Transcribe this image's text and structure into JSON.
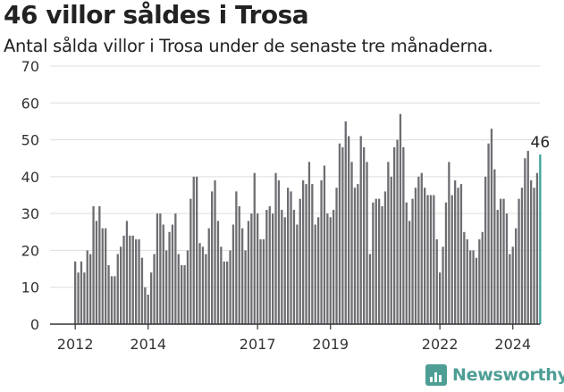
{
  "header": {
    "title": "46 villor såldes i Trosa",
    "subtitle": "Antal sålda villor i Trosa under de senaste tre månaderna."
  },
  "brand": {
    "name": "Newsworthy"
  },
  "colors": {
    "bar": "#6e6d72",
    "highlight": "#3aa39b",
    "grid": "#dddddd",
    "axis": "#333333"
  },
  "chart_data": {
    "type": "bar",
    "title": "46 villor såldes i Trosa",
    "xlabel": "",
    "ylabel": "",
    "ylim": [
      0,
      70
    ],
    "yticks": [
      0,
      10,
      20,
      30,
      40,
      50,
      60,
      70
    ],
    "xticks": [
      {
        "label": "2012",
        "index": 0
      },
      {
        "label": "2014",
        "index": 24
      },
      {
        "label": "2017",
        "index": 60
      },
      {
        "label": "2019",
        "index": 84
      },
      {
        "label": "2022",
        "index": 120
      },
      {
        "label": "2024",
        "index": 144
      }
    ],
    "grid": true,
    "start": "2012-01",
    "highlight_label": "46",
    "values": [
      17,
      14,
      17,
      14,
      20,
      19,
      32,
      28,
      32,
      26,
      26,
      16,
      13,
      13,
      19,
      21,
      24,
      28,
      24,
      24,
      23,
      23,
      18,
      10,
      8,
      14,
      19,
      30,
      30,
      27,
      20,
      25,
      27,
      30,
      19,
      16,
      16,
      20,
      34,
      40,
      40,
      22,
      21,
      19,
      26,
      36,
      39,
      28,
      21,
      17,
      17,
      20,
      27,
      36,
      32,
      26,
      20,
      28,
      30,
      41,
      30,
      23,
      23,
      31,
      32,
      30,
      41,
      39,
      31,
      29,
      37,
      36,
      31,
      27,
      34,
      39,
      38,
      44,
      38,
      27,
      29,
      39,
      43,
      30,
      29,
      31,
      37,
      49,
      48,
      55,
      51,
      44,
      37,
      38,
      51,
      48,
      44,
      19,
      33,
      34,
      34,
      32,
      36,
      44,
      40,
      48,
      50,
      57,
      48,
      33,
      28,
      34,
      37,
      40,
      41,
      37,
      35,
      35,
      35,
      23,
      14,
      21,
      33,
      44,
      35,
      39,
      37,
      38,
      25,
      23,
      20,
      20,
      18,
      23,
      25,
      40,
      49,
      53,
      42,
      31,
      34,
      34,
      30,
      19,
      21,
      26,
      34,
      37,
      45,
      47,
      39,
      37,
      41,
      46
    ]
  }
}
